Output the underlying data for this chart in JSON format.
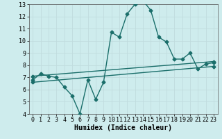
{
  "xlabel": "Humidex (Indice chaleur)",
  "background_color": "#ceeced",
  "grid_color": "#c0dcde",
  "line_color": "#1a6e6a",
  "xlim": [
    -0.5,
    23.5
  ],
  "ylim": [
    4,
    13
  ],
  "xticks": [
    0,
    1,
    2,
    3,
    4,
    5,
    6,
    7,
    8,
    9,
    10,
    11,
    12,
    13,
    14,
    15,
    16,
    17,
    18,
    19,
    20,
    21,
    22,
    23
  ],
  "yticks": [
    4,
    5,
    6,
    7,
    8,
    9,
    10,
    11,
    12,
    13
  ],
  "curve1_x": [
    0,
    1,
    2,
    3,
    4,
    5,
    6,
    7,
    8,
    9,
    10,
    11,
    12,
    13,
    14,
    15,
    16,
    17,
    18,
    19,
    20,
    21,
    22,
    23
  ],
  "curve1_y": [
    6.8,
    7.3,
    7.1,
    7.0,
    6.2,
    5.5,
    4.0,
    6.8,
    5.2,
    6.6,
    10.7,
    10.3,
    12.2,
    13.0,
    13.3,
    12.5,
    10.3,
    9.9,
    8.5,
    8.5,
    9.0,
    7.7,
    8.1,
    8.2
  ],
  "curve2_x": [
    0,
    23
  ],
  "curve2_y": [
    7.1,
    8.3
  ],
  "curve3_x": [
    0,
    23
  ],
  "curve3_y": [
    6.6,
    7.9
  ],
  "marker_size": 2.5,
  "line_width": 1.0,
  "font_size_label": 7,
  "font_size_tick": 6
}
